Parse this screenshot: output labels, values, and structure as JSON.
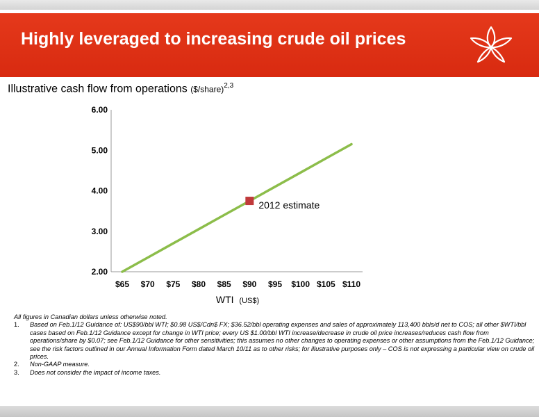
{
  "header": {
    "title": "Highly leveraged to increasing crude oil prices"
  },
  "colors": {
    "banner": "#dd3015",
    "line": "#8cbd4a",
    "marker": "#c0393b"
  },
  "icons": {
    "logo": "flower-logo-icon"
  },
  "chart_data": {
    "type": "line",
    "title": "Illustrative cash flow from operations",
    "title_unit": "($/share)",
    "title_superscript": "2,3",
    "xlabel": "WTI",
    "xlabel_unit": "(US$)",
    "ylabel": "",
    "categories": [
      "$65",
      "$70",
      "$75",
      "$80",
      "$85",
      "$90",
      "$95",
      "$100",
      "$105",
      "$110"
    ],
    "x_values": [
      65,
      70,
      75,
      80,
      85,
      90,
      95,
      100,
      105,
      110
    ],
    "xlim": [
      65,
      110
    ],
    "ylim": [
      2.0,
      6.0
    ],
    "y_ticks": [
      "6.00",
      "5.00",
      "4.00",
      "3.00",
      "2.00"
    ],
    "y_tick_values": [
      6,
      5,
      4,
      3,
      2
    ],
    "series": [
      {
        "x": [
          65,
          70,
          75,
          80,
          85,
          90,
          95,
          100,
          105,
          110
        ],
        "values": [
          2.0,
          2.35,
          2.7,
          3.05,
          3.4,
          3.75,
          4.1,
          4.45,
          4.8,
          5.15
        ]
      }
    ],
    "annotation": {
      "label": "2012 estimate",
      "x": 90,
      "y": 3.75
    },
    "grid": false,
    "legend": "none"
  },
  "notes": {
    "intro": "All figures in Canadian dollars unless otherwise noted.",
    "items": [
      {
        "num": "1.",
        "text": "Based on Feb.1/12 Guidance of: US$90/bbl WTI; $0.98 US$/Cdn$ FX; $36.52/bbl operating expenses and sales of approximately 113,400 bbls/d net to COS; all other $WTI/bbl cases based on Feb.1/12 Guidance except for change in WTI price; every US $1.00/bbl WTI increase/decrease in crude oil price increases/reduces cash flow from operations/share by $0.07; see Feb.1/12 Guidance for other sensitivities; this assumes no other changes to operating expenses or other assumptions from the Feb.1/12 Guidance; see the risk factors outlined in our Annual Information Form dated March 10/11 as to other risks; for illustrative purposes only – COS is not expressing a particular view on crude oil prices."
      },
      {
        "num": "2.",
        "text": "Non-GAAP measure."
      },
      {
        "num": "3.",
        "text": "Does not consider the impact of income taxes."
      }
    ]
  }
}
